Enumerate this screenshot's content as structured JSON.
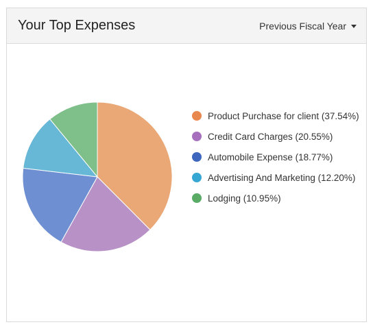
{
  "header": {
    "title": "Your Top Expenses",
    "period_label": "Previous Fiscal Year",
    "period_icon": "caret-down-icon"
  },
  "chart_data": {
    "type": "pie",
    "title": "",
    "slices": [
      {
        "label": "Product Purchase for client (37.54%)",
        "value": 37.54,
        "color": "#e9a876",
        "dot": "#e8884f"
      },
      {
        "label": "Credit Card Charges (20.55%)",
        "value": 20.55,
        "color": "#b892c6",
        "dot": "#a770bf"
      },
      {
        "label": "Automobile Expense (18.77%)",
        "value": 18.77,
        "color": "#6e8fd1",
        "dot": "#3f67bd"
      },
      {
        "label": "Advertising And Marketing (12.20%)",
        "value": 12.2,
        "color": "#67b7d6",
        "dot": "#35a7d2"
      },
      {
        "label": "Lodging (10.95%)",
        "value": 10.95,
        "color": "#7fbf89",
        "dot": "#5aab66"
      }
    ],
    "legend_position": "right"
  }
}
